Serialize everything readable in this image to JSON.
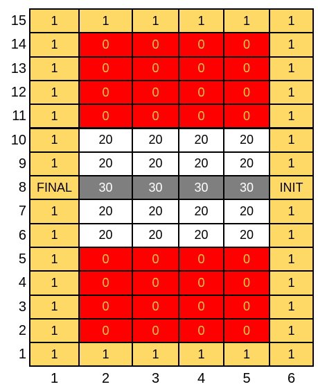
{
  "row_labels": [
    "15",
    "14",
    "13",
    "12",
    "11",
    "10",
    "9",
    "8",
    "7",
    "6",
    "5",
    "4",
    "3",
    "2",
    "1"
  ],
  "col_labels": [
    "1",
    "2",
    "3",
    "4",
    "5",
    "6"
  ],
  "colors": {
    "y": "#ffd966",
    "r": "#ff0000",
    "w": "#ffffff",
    "g": "#7f7f7f"
  },
  "rows": [
    {
      "values": [
        "1",
        "1",
        "1",
        "1",
        "1",
        "1"
      ],
      "types": [
        "y",
        "y",
        "y",
        "y",
        "y",
        "y"
      ]
    },
    {
      "values": [
        "1",
        "0",
        "0",
        "0",
        "0",
        "1"
      ],
      "types": [
        "y",
        "r",
        "r",
        "r",
        "r",
        "y"
      ]
    },
    {
      "values": [
        "1",
        "0",
        "0",
        "0",
        "0",
        "1"
      ],
      "types": [
        "y",
        "r",
        "r",
        "r",
        "r",
        "y"
      ]
    },
    {
      "values": [
        "1",
        "0",
        "0",
        "0",
        "0",
        "1"
      ],
      "types": [
        "y",
        "r",
        "r",
        "r",
        "r",
        "y"
      ]
    },
    {
      "values": [
        "1",
        "0",
        "0",
        "0",
        "0",
        "1"
      ],
      "types": [
        "y",
        "r",
        "r",
        "r",
        "r",
        "y"
      ]
    },
    {
      "values": [
        "1",
        "20",
        "20",
        "20",
        "20",
        "1"
      ],
      "types": [
        "y",
        "w",
        "w",
        "w",
        "w",
        "y"
      ]
    },
    {
      "values": [
        "1",
        "20",
        "20",
        "20",
        "20",
        "1"
      ],
      "types": [
        "y",
        "w",
        "w",
        "w",
        "w",
        "y"
      ]
    },
    {
      "values": [
        "FINAL",
        "30",
        "30",
        "30",
        "30",
        "INIT"
      ],
      "types": [
        "y",
        "g",
        "g",
        "g",
        "g",
        "y"
      ]
    },
    {
      "values": [
        "1",
        "20",
        "20",
        "20",
        "20",
        "1"
      ],
      "types": [
        "y",
        "w",
        "w",
        "w",
        "w",
        "y"
      ]
    },
    {
      "values": [
        "1",
        "20",
        "20",
        "20",
        "20",
        "1"
      ],
      "types": [
        "y",
        "w",
        "w",
        "w",
        "w",
        "y"
      ]
    },
    {
      "values": [
        "1",
        "0",
        "0",
        "0",
        "0",
        "1"
      ],
      "types": [
        "y",
        "r",
        "r",
        "r",
        "r",
        "y"
      ]
    },
    {
      "values": [
        "1",
        "0",
        "0",
        "0",
        "0",
        "1"
      ],
      "types": [
        "y",
        "r",
        "r",
        "r",
        "r",
        "y"
      ]
    },
    {
      "values": [
        "1",
        "0",
        "0",
        "0",
        "0",
        "1"
      ],
      "types": [
        "y",
        "r",
        "r",
        "r",
        "r",
        "y"
      ]
    },
    {
      "values": [
        "1",
        "0",
        "0",
        "0",
        "0",
        "1"
      ],
      "types": [
        "y",
        "r",
        "r",
        "r",
        "r",
        "y"
      ]
    },
    {
      "values": [
        "1",
        "1",
        "1",
        "1",
        "1",
        "1"
      ],
      "types": [
        "y",
        "y",
        "y",
        "y",
        "y",
        "y"
      ]
    }
  ]
}
